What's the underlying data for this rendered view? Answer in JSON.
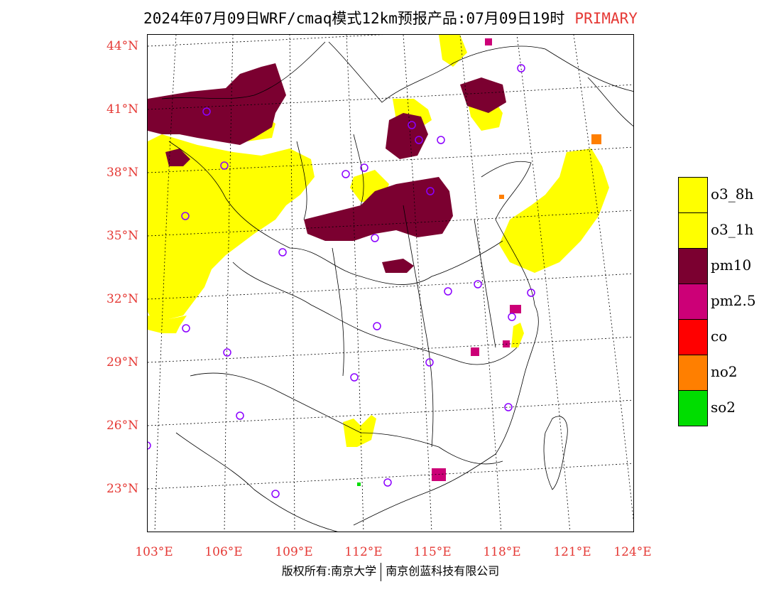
{
  "title": {
    "main": "2024年07月09日WRF/cmaq模式12km预报产品:07月09日19时",
    "tag": "PRIMARY"
  },
  "axes": {
    "latitudes": [
      "44°N",
      "41°N",
      "38°N",
      "35°N",
      "32°N",
      "29°N",
      "26°N",
      "23°N"
    ],
    "longitudes": [
      "103°E",
      "106°E",
      "109°E",
      "112°E",
      "115°E",
      "118°E",
      "121°E",
      "124°E"
    ]
  },
  "legend": [
    {
      "label": "o3_8h",
      "color": "#ffff00"
    },
    {
      "label": "o3_1h",
      "color": "#ffff00"
    },
    {
      "label": "pm10",
      "color": "#7b0030"
    },
    {
      "label": "pm2.5",
      "color": "#cc0077"
    },
    {
      "label": "co",
      "color": "#ff0000"
    },
    {
      "label": "no2",
      "color": "#ff7f00"
    },
    {
      "label": "so2",
      "color": "#00dd00"
    }
  ],
  "footer": {
    "left": "版权所有:南京大学",
    "right": "南京创蓝科技有限公司"
  },
  "colors": {
    "label_red": "#e53935",
    "station_circle": "#8b00ff"
  }
}
